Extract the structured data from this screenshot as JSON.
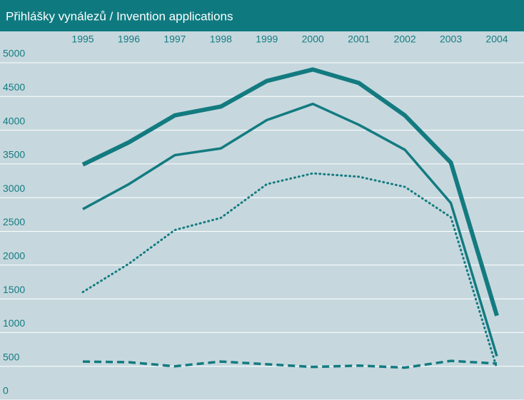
{
  "chart_data": {
    "type": "line",
    "title": "Přihlášky vynálezů / Invention applications",
    "categories": [
      "1995",
      "1996",
      "1997",
      "1998",
      "1999",
      "2000",
      "2001",
      "2002",
      "2003",
      "2004"
    ],
    "series": [
      {
        "color": "#137b80",
        "line_width": 6,
        "dash": "solid",
        "values": [
          3490,
          3820,
          4220,
          4350,
          4730,
          4900,
          4700,
          4220,
          3520,
          1250
        ]
      },
      {
        "color": "#137b80",
        "line_width": 3.5,
        "dash": "solid",
        "values": [
          2830,
          3200,
          3630,
          3730,
          4150,
          4390,
          4080,
          3710,
          2920,
          650
        ]
      },
      {
        "color": "#137b80",
        "line_width": 3,
        "dash": "dotted",
        "values": [
          1600,
          2020,
          2520,
          2700,
          3200,
          3360,
          3310,
          3160,
          2710,
          470
        ]
      },
      {
        "color": "#137b80",
        "line_width": 3.5,
        "dash": "dashed",
        "values": [
          570,
          560,
          500,
          570,
          530,
          490,
          510,
          480,
          580,
          540
        ]
      }
    ],
    "ylim": [
      0,
      5000
    ],
    "yticks": [
      0,
      500,
      1000,
      1500,
      2000,
      2500,
      3000,
      3500,
      4000,
      4500,
      5000
    ],
    "grid": true
  }
}
